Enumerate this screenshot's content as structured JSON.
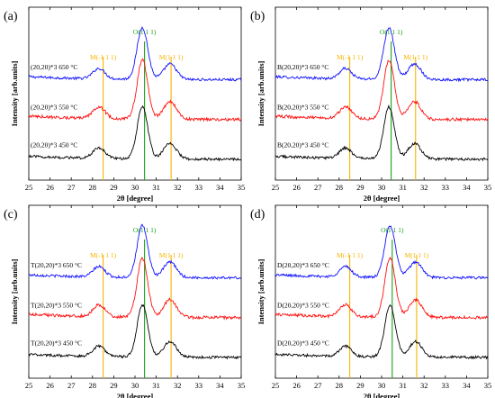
{
  "chart_data": [
    {
      "type": "line",
      "panel_label": "(a)",
      "xlabel": "2θ [degree]",
      "ylabel": "Intensity [arb.units]",
      "xlim": [
        25,
        35
      ],
      "xticks": [
        "25",
        "26",
        "27",
        "28",
        "29",
        "30",
        "31",
        "32",
        "33",
        "34",
        "35"
      ],
      "reference_lines": [
        {
          "label": "M(-1 1 1)",
          "x": 28.5,
          "color": "#f5b400"
        },
        {
          "label": "O(1 1 1)",
          "x": 30.45,
          "color": "#1aa01a"
        },
        {
          "label": "M(1 1 1)",
          "x": 31.7,
          "color": "#f5b400"
        }
      ],
      "series": [
        {
          "name": "(20,20)*3 650 °C",
          "color": "#1010ff"
        },
        {
          "name": "(20,20)*3 550 °C",
          "color": "#ff1010"
        },
        {
          "name": "(20,20)*3 450 °C",
          "color": "#000000"
        }
      ]
    },
    {
      "type": "line",
      "panel_label": "(b)",
      "xlabel": "2θ [degree]",
      "ylabel": "Intensity [arb.units]",
      "xlim": [
        25,
        35
      ],
      "xticks": [
        "25",
        "26",
        "27",
        "28",
        "29",
        "30",
        "31",
        "32",
        "33",
        "34",
        "35"
      ],
      "reference_lines": [
        {
          "label": "M(-1 1 1)",
          "x": 28.5,
          "color": "#f5b400"
        },
        {
          "label": "O(1 1 1)",
          "x": 30.45,
          "color": "#1aa01a"
        },
        {
          "label": "M(1 1 1)",
          "x": 31.6,
          "color": "#f5b400"
        }
      ],
      "series": [
        {
          "name": "B(20,20)*3 650 °C",
          "color": "#1010ff"
        },
        {
          "name": "B(20,20)*3 550 °C",
          "color": "#ff1010"
        },
        {
          "name": "B(20,20)*3 450 °C",
          "color": "#000000"
        }
      ]
    },
    {
      "type": "line",
      "panel_label": "(c)",
      "xlabel": "2θ [degree]",
      "ylabel": "Intensity [arb.units]",
      "xlim": [
        25,
        35
      ],
      "xticks": [
        "25",
        "26",
        "27",
        "28",
        "29",
        "30",
        "31",
        "32",
        "33",
        "34",
        "35"
      ],
      "reference_lines": [
        {
          "label": "M(-1 1 1)",
          "x": 28.5,
          "color": "#f5b400"
        },
        {
          "label": "O(1 1 1)",
          "x": 30.45,
          "color": "#1aa01a"
        },
        {
          "label": "M(1 1 1)",
          "x": 31.7,
          "color": "#f5b400"
        }
      ],
      "series": [
        {
          "name": "T(20,20)*3 650 °C",
          "color": "#1010ff"
        },
        {
          "name": "T(20,20)*3 550 °C",
          "color": "#ff1010"
        },
        {
          "name": "T(20,20)*3 450 °C",
          "color": "#000000"
        }
      ]
    },
    {
      "type": "line",
      "panel_label": "(d)",
      "xlabel": "2θ [degree]",
      "ylabel": "Intensity [arb.units]",
      "xlim": [
        25,
        35
      ],
      "xticks": [
        "25",
        "26",
        "27",
        "28",
        "29",
        "30",
        "31",
        "32",
        "33",
        "34",
        "35"
      ],
      "reference_lines": [
        {
          "label": "M(-1 1 1)",
          "x": 28.5,
          "color": "#f5b400"
        },
        {
          "label": "O(1 1 1)",
          "x": 30.5,
          "color": "#1aa01a"
        },
        {
          "label": "M(1 1 1)",
          "x": 31.65,
          "color": "#f5b400"
        }
      ],
      "series": [
        {
          "name": "D(20,20)*3 650 °C",
          "color": "#1010ff"
        },
        {
          "name": "D(20,20)*3 550 °C",
          "color": "#ff1010"
        },
        {
          "name": "D(20,20)*3 450 °C",
          "color": "#000000"
        }
      ]
    }
  ]
}
